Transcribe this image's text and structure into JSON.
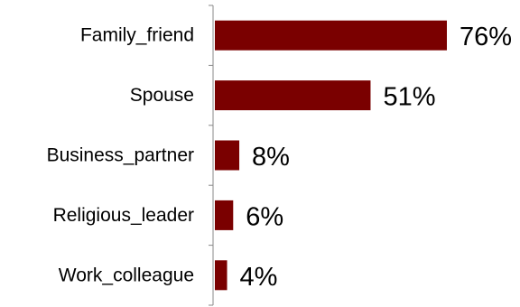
{
  "chart_data": {
    "type": "bar",
    "orientation": "horizontal",
    "categories": [
      "Family_friend",
      "Spouse",
      "Business_partner",
      "Religious_leader",
      "Work_colleague"
    ],
    "values": [
      76,
      51,
      8,
      6,
      4
    ],
    "value_labels": [
      "76%",
      "51%",
      "8%",
      "6%",
      "4%"
    ],
    "unit": "%",
    "xlim": [
      0,
      100
    ],
    "grid": false,
    "legend": "none",
    "bar_color": "#7a0000"
  }
}
